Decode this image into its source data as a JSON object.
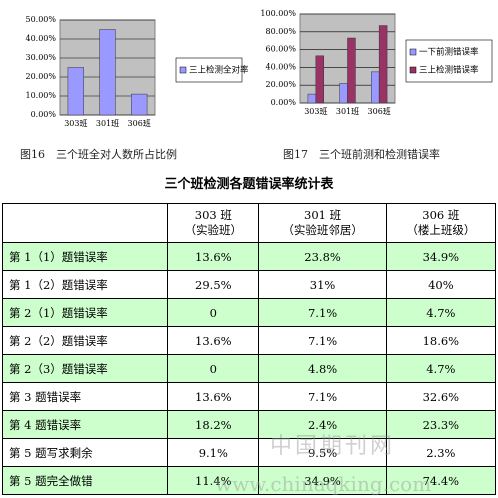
{
  "chart_data": [
    {
      "type": "bar",
      "categories": [
        "303班",
        "301班",
        "306班"
      ],
      "series": [
        {
          "name": "三上检测全对率",
          "color": "#9999ff",
          "values": [
            25,
            45,
            11
          ]
        }
      ],
      "ylim": [
        0,
        50
      ],
      "yticks": [
        {
          "value": 0,
          "label": "0.00%"
        },
        {
          "value": 10,
          "label": "10.00%"
        },
        {
          "value": 20,
          "label": "20.00%"
        },
        {
          "value": 30,
          "label": "30.00%"
        },
        {
          "value": 40,
          "label": "40.00%"
        },
        {
          "value": 50,
          "label": "50.00%"
        }
      ],
      "grid": true
    },
    {
      "type": "bar",
      "categories": [
        "303班",
        "301班",
        "306班"
      ],
      "series": [
        {
          "name": "一下前测错误率",
          "color": "#9999ff",
          "values": [
            10,
            22,
            35
          ]
        },
        {
          "name": "三上检测错误率",
          "color": "#993366",
          "values": [
            53,
            73,
            87
          ]
        }
      ],
      "ylim": [
        0,
        100
      ],
      "yticks": [
        {
          "value": 0,
          "label": "0.00%"
        },
        {
          "value": 20,
          "label": "20.00%"
        },
        {
          "value": 40,
          "label": "40.00%"
        },
        {
          "value": 60,
          "label": "60.00%"
        },
        {
          "value": 80,
          "label": "80.00%"
        },
        {
          "value": 100,
          "label": "100.00%"
        }
      ],
      "grid": true
    }
  ],
  "captions": [
    "图16　三个班全对人数所占比例",
    "图17　三个班前测和检测错误率"
  ],
  "table": {
    "title": "三个班检测各题错误率统计表",
    "header": [
      [
        "303 班",
        "（实验班）"
      ],
      [
        "301 班",
        "（实验班邻居）"
      ],
      [
        "306 班",
        "（楼上班级）"
      ]
    ],
    "rows": [
      [
        "第 1（1）题错误率",
        "13.6%",
        "23.8%",
        "34.9%"
      ],
      [
        "第 1（2）题错误率",
        "29.5%",
        "31%",
        "40%"
      ],
      [
        "第 2（1）题错误率",
        "0",
        "7.1%",
        "4.7%"
      ],
      [
        "第 2（2）题错误率",
        "13.6%",
        "7.1%",
        "18.6%"
      ],
      [
        "第 2（3）题错误率",
        "0",
        "4.8%",
        "4.7%"
      ],
      [
        "第 3 题错误率",
        "13.6%",
        "7.1%",
        "32.6%"
      ],
      [
        "第 4 题错误率",
        "18.2%",
        "2.4%",
        "23.3%"
      ],
      [
        "第 5 题写求剩余",
        "9.1%",
        "9.5%",
        "2.3%"
      ],
      [
        "第 5 题完全做错",
        "11.4%",
        "34.9%",
        "74.4%"
      ]
    ]
  },
  "watermark": [
    "中国期刊网",
    "www.chinaqking.com"
  ]
}
